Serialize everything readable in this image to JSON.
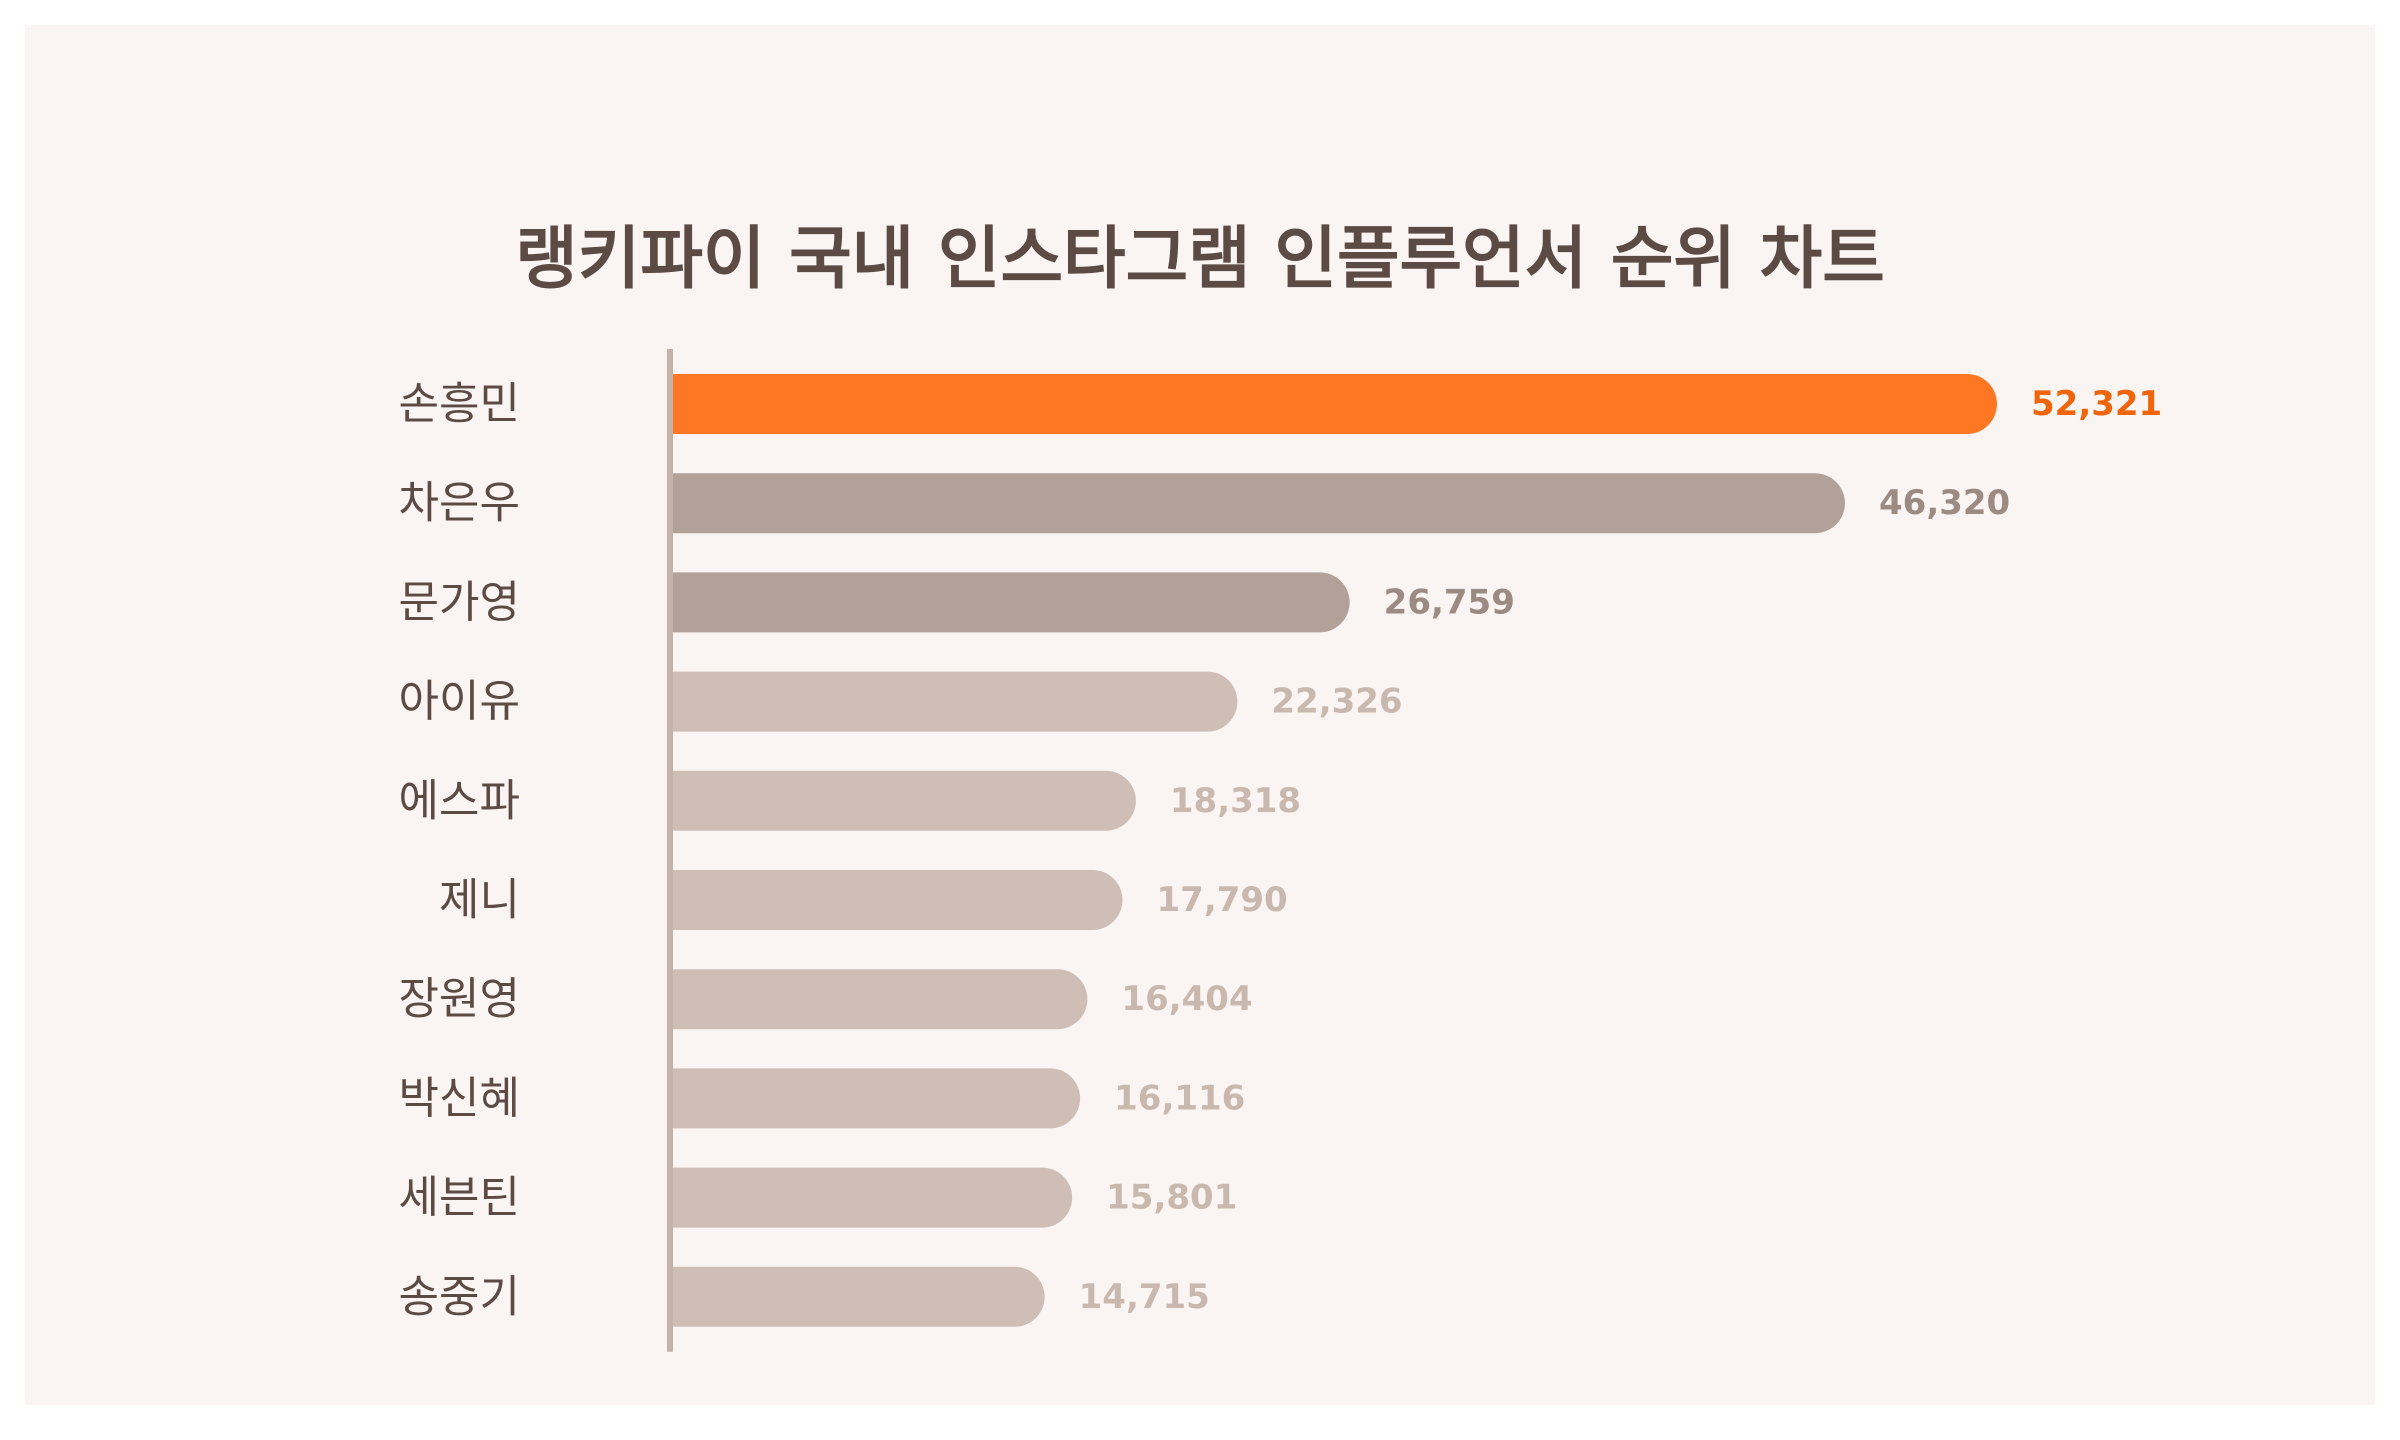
{
  "chart_data": {
    "type": "bar",
    "orientation": "horizontal",
    "title": "랭키파이 국내 인스타그램 인플루언서 순위 차트",
    "categories": [
      "손흥민",
      "차은우",
      "문가영",
      "아이유",
      "에스파",
      "제니",
      "장원영",
      "박신혜",
      "세븐틴",
      "송중기"
    ],
    "values": [
      52321,
      46320,
      26759,
      22326,
      18318,
      17790,
      16404,
      16116,
      15801,
      14715
    ],
    "value_labels": [
      "52,321",
      "46,320",
      "26,759",
      "22,326",
      "18,318",
      "17,790",
      "16,404",
      "16,116",
      "15,801",
      "14,715"
    ],
    "xlim": [
      0,
      52321
    ],
    "grid": false,
    "legend": "none",
    "colors": {
      "highlight": "#ff7722",
      "highlight_label": "#f0640a",
      "medium": "#b2a199",
      "medium_label": "#9c8b82",
      "light": "#cfbeb5",
      "light_label": "#c9b8ae",
      "axis": "#c4b3aa",
      "text": "#5c4b44",
      "background": "#faf5f3"
    },
    "color_tiers": [
      "highlight",
      "medium",
      "medium",
      "light",
      "light",
      "light",
      "light",
      "light",
      "light",
      "light"
    ]
  }
}
